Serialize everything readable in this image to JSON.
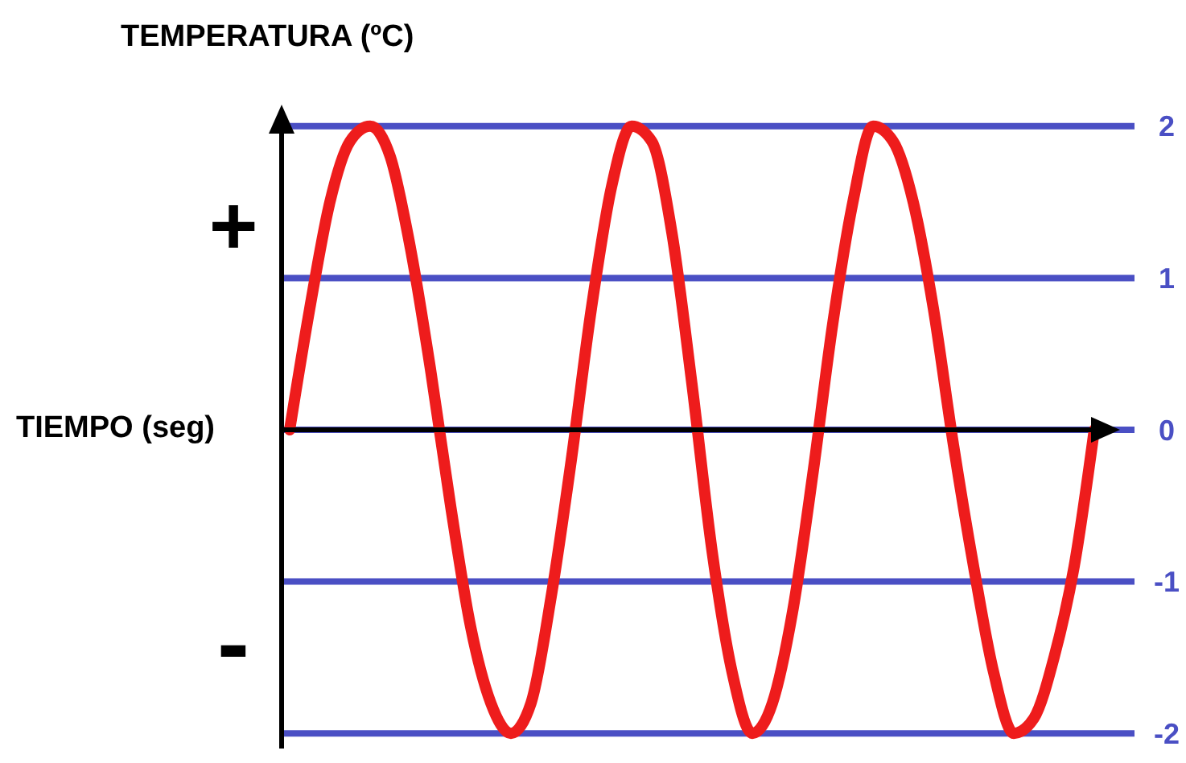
{
  "chart_data": {
    "type": "line",
    "xlabel": "TIEMPO (seg)",
    "ylabel": "TEMPERATURA (ºC)",
    "categories": [
      null,
      null,
      null,
      null,
      null,
      null,
      null,
      null,
      null,
      null,
      null,
      null,
      null,
      null,
      null,
      null,
      null,
      null,
      null,
      null,
      null,
      null,
      null,
      null,
      null,
      null,
      null,
      null,
      null,
      null,
      null,
      null,
      null,
      null,
      null,
      null,
      null,
      null,
      null,
      null,
      null
    ],
    "series": [
      {
        "color": "#ee1c1c",
        "values": [
          0,
          0.8,
          1.5,
          1.9,
          2,
          1.8,
          1.2,
          0.4,
          -0.5,
          -1.3,
          -1.8,
          -2,
          -1.8,
          -1.1,
          -0.2,
          0.8,
          1.6,
          2,
          1.9,
          1.3,
          0.3,
          -0.8,
          -1.6,
          -2,
          -1.8,
          -1.2,
          -0.3,
          0.7,
          1.5,
          2,
          1.9,
          1.5,
          0.8,
          -0.1,
          -0.9,
          -1.6,
          -2,
          -1.9,
          -1.5,
          -0.9,
          0
        ]
      }
    ],
    "ylim": [
      -2.1,
      2.1
    ],
    "yticks": [
      2,
      1,
      0,
      -1,
      -2
    ],
    "grid": "y",
    "marker": "none",
    "line_style": "solid",
    "annotations": [
      "+",
      "-"
    ]
  }
}
